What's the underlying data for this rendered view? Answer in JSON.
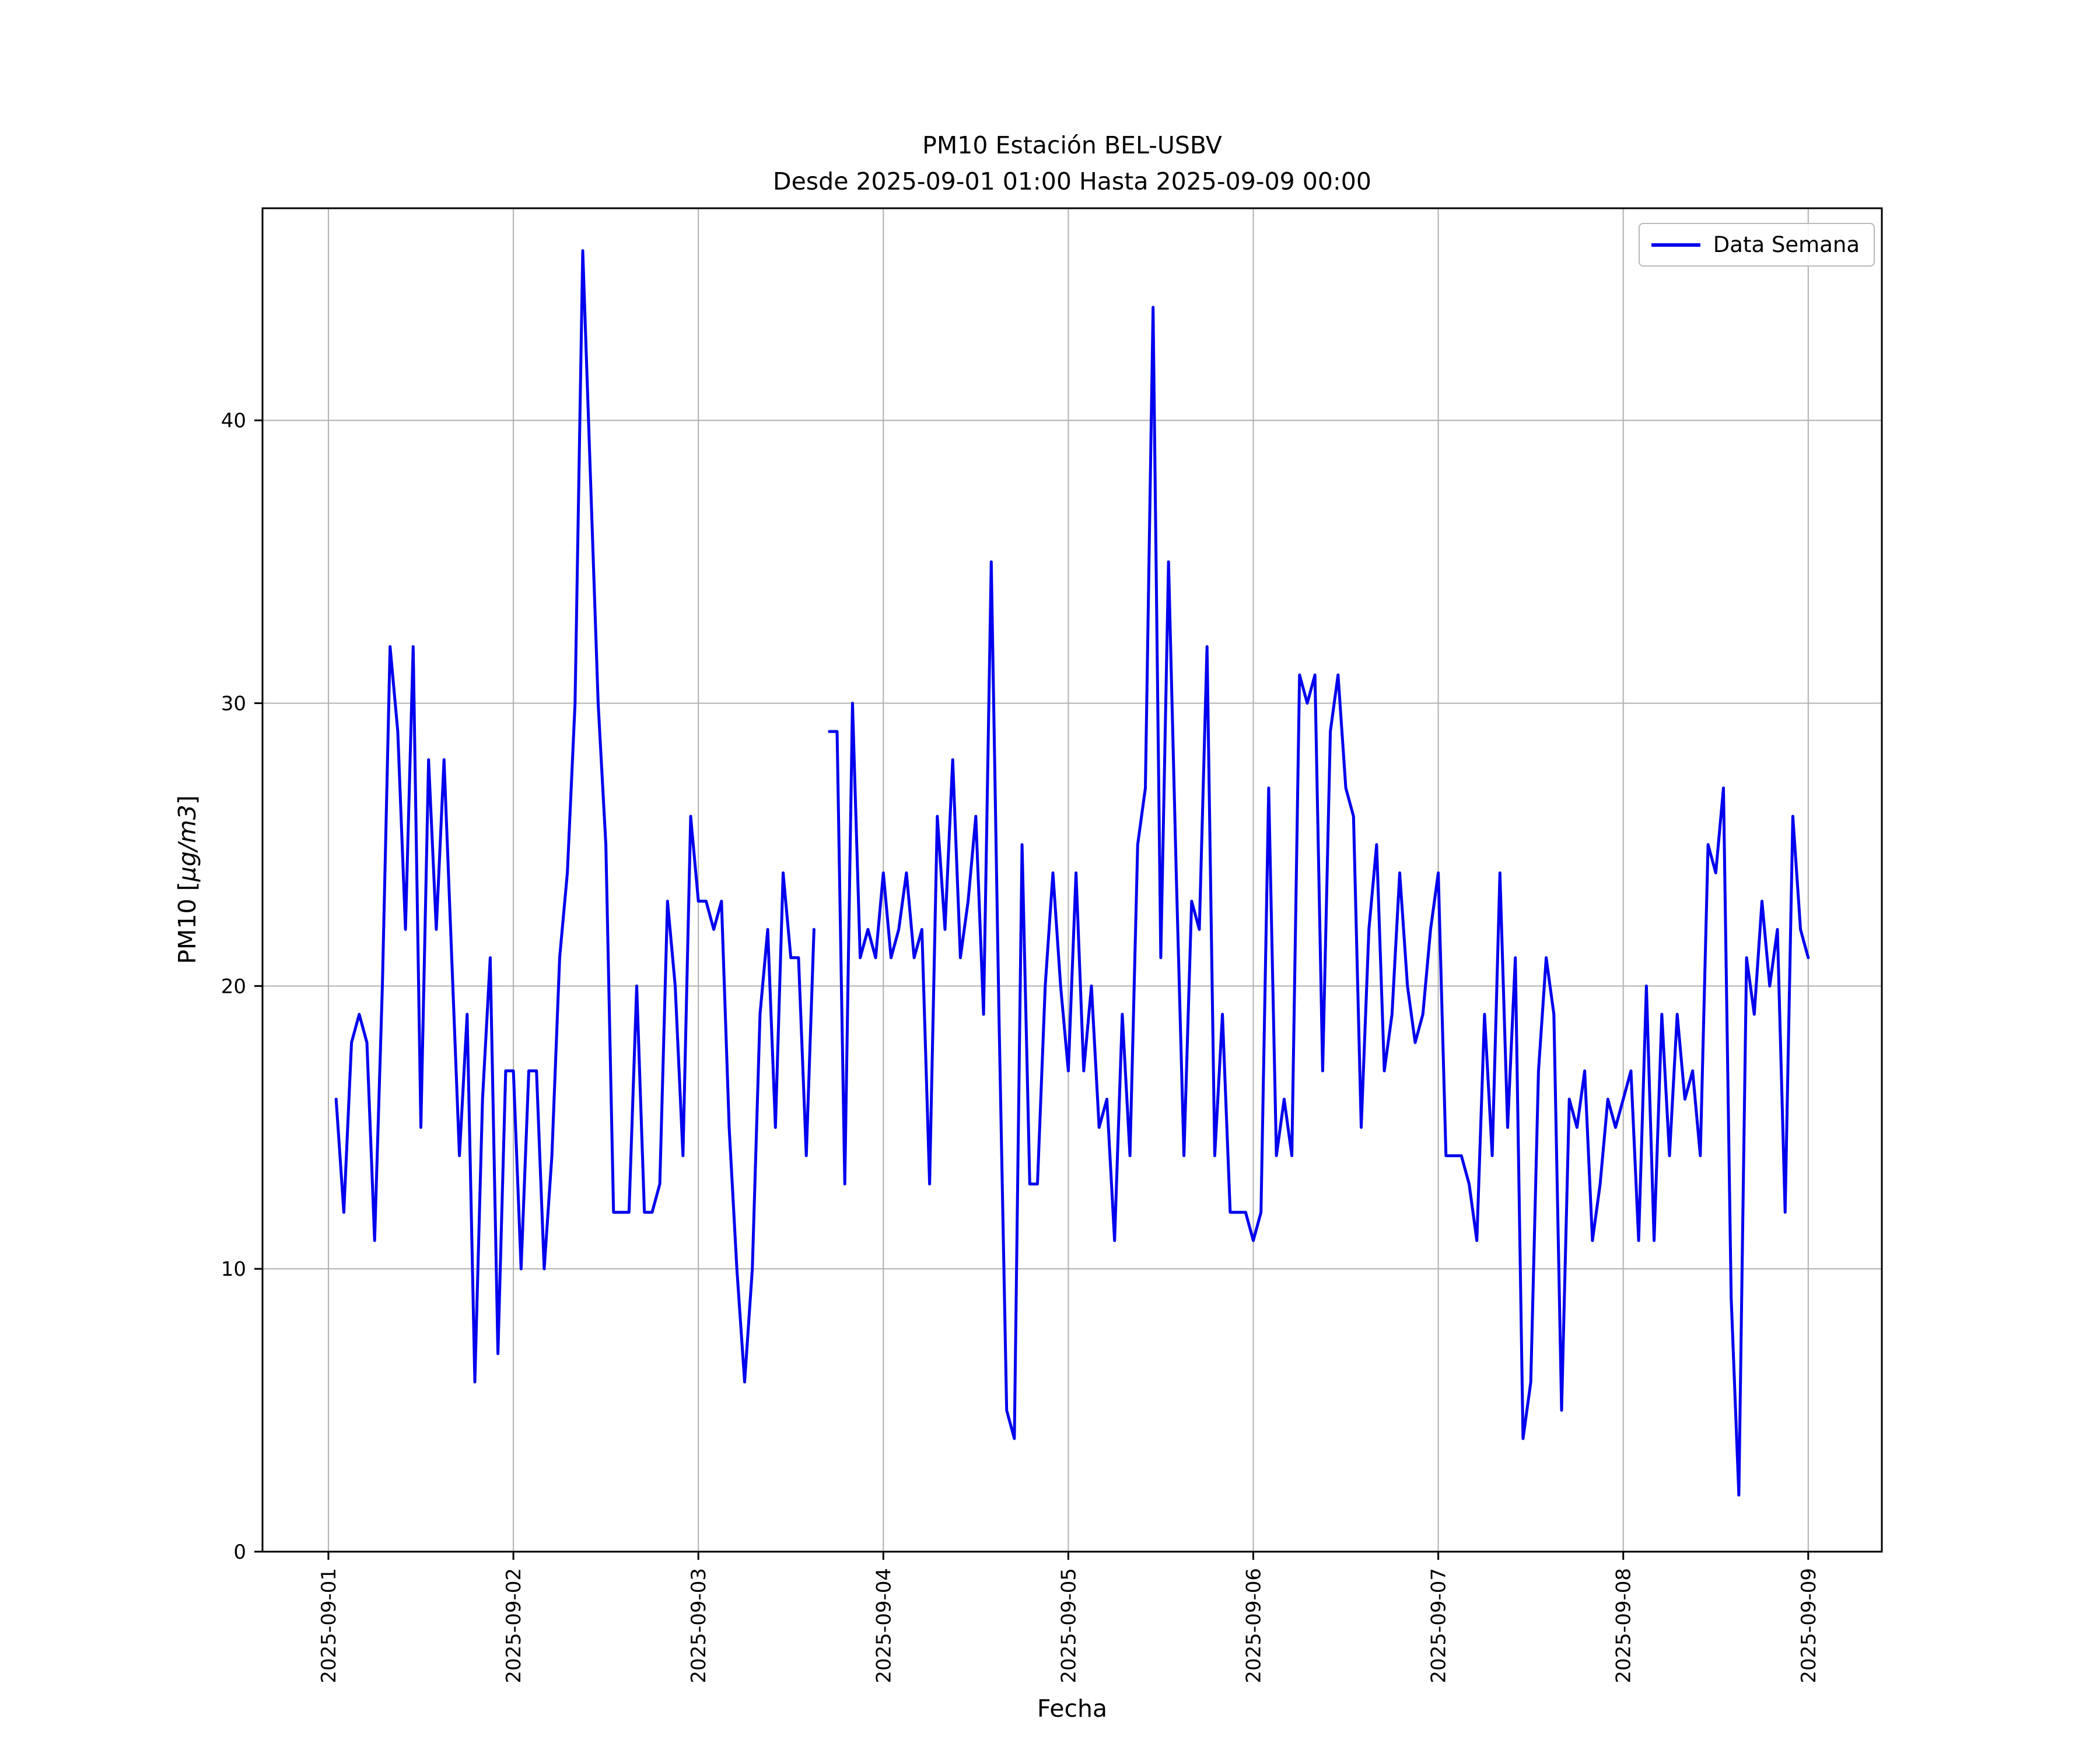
{
  "title": {
    "line1": "PM10 Estación BEL-USBV",
    "line2": "Desde 2025-09-01 01:00 Hasta 2025-09-09 00:00"
  },
  "axes": {
    "xlabel": "Fecha",
    "ylabel_pre": "PM10 [",
    "ylabel_math": "µg/m3",
    "ylabel_post": "]"
  },
  "legend": {
    "label": "Data Semana"
  },
  "colors": {
    "line": "#0000ee",
    "grid": "#b0b0b0",
    "spine": "#000000",
    "background": "#ffffff"
  },
  "chart_data": {
    "type": "line",
    "title": "PM10 Estación BEL-USBV — Desde 2025-09-01 01:00 Hasta 2025-09-09 00:00",
    "series_name": "Data Semana",
    "xlabel": "Fecha",
    "ylabel": "PM10 [µg/m3]",
    "start": "2025-09-01 01:00",
    "end": "2025-09-09 00:00",
    "interval_hours": 1,
    "start_hour": 1,
    "xlim": [
      -8.55,
      201.55
    ],
    "ylim": [
      0,
      47.5
    ],
    "y_ticks": [
      0,
      10,
      20,
      30,
      40
    ],
    "x_tick_hours": [
      0,
      24,
      48,
      72,
      96,
      120,
      144,
      168,
      192
    ],
    "x_tick_labels": [
      "2025-09-01",
      "2025-09-02",
      "2025-09-03",
      "2025-09-04",
      "2025-09-05",
      "2025-09-06",
      "2025-09-07",
      "2025-09-08",
      "2025-09-09"
    ],
    "grid": true,
    "legend_position": "upper right",
    "values": [
      16,
      12,
      18,
      19,
      18,
      11,
      20,
      32,
      29,
      22,
      32,
      15,
      28,
      22,
      28,
      21,
      14,
      19,
      6,
      16,
      21,
      7,
      17,
      17,
      10,
      17,
      17,
      10,
      14,
      21,
      24,
      30,
      46,
      38,
      30,
      25,
      12,
      12,
      12,
      20,
      12,
      12,
      13,
      23,
      20,
      14,
      26,
      23,
      23,
      22,
      23,
      15,
      10,
      6,
      10,
      19,
      22,
      15,
      24,
      21,
      21,
      14,
      22,
      null,
      29,
      29,
      13,
      30,
      21,
      22,
      21,
      24,
      21,
      22,
      24,
      21,
      22,
      13,
      26,
      22,
      28,
      21,
      23,
      26,
      19,
      35,
      19,
      5,
      4,
      25,
      13,
      13,
      20,
      24,
      20,
      17,
      24,
      17,
      20,
      15,
      16,
      11,
      19,
      14,
      25,
      27,
      44,
      21,
      35,
      24,
      14,
      23,
      22,
      32,
      14,
      19,
      12,
      12,
      12,
      11,
      12,
      27,
      14,
      16,
      14,
      31,
      30,
      31,
      17,
      29,
      31,
      27,
      26,
      15,
      22,
      25,
      17,
      19,
      24,
      20,
      18,
      19,
      22,
      24,
      14,
      14,
      14,
      13,
      11,
      19,
      14,
      24,
      15,
      21,
      4,
      6,
      17,
      21,
      19,
      5,
      16,
      15,
      17,
      11,
      13,
      16,
      15,
      16,
      17,
      11,
      20,
      11,
      19,
      14,
      19,
      16,
      17,
      14,
      25,
      24,
      27,
      9,
      2,
      21,
      19,
      23,
      20,
      22,
      12,
      26,
      22,
      21
    ]
  }
}
